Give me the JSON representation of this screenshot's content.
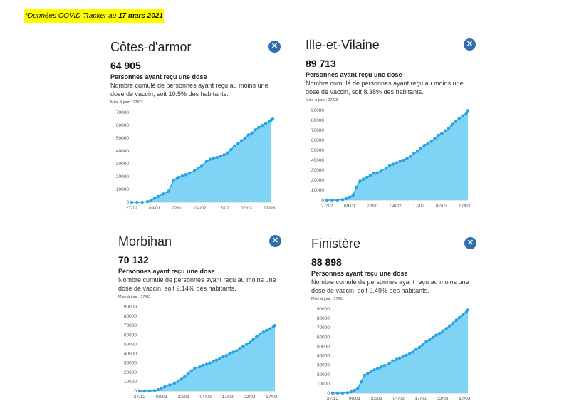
{
  "banner": {
    "prefix": "*Données COVID Tracker au ",
    "date": "17 mars 2021"
  },
  "cards": [
    {
      "title": "Côtes-d'armor",
      "value": "64 905",
      "subtitle": "Personnes ayant reçu une dose",
      "description": "Nombre cumulé de personnes ayant reçu au moins une dose de vaccin, soit 10.5% des habitants.",
      "update": "Mise à jour : 17/03",
      "close_icon": "close-icon"
    },
    {
      "title": "Ille-et-Vilaine",
      "value": "89 713",
      "subtitle": "Personnes ayant reçu une dose",
      "description": "Nombre cumulé de personnes ayant reçu au moins une dose de vaccin, soit 8.38% des habitants.",
      "update": "Mise à jour : 17/03",
      "close_icon": "close-icon"
    },
    {
      "title": "Morbihan",
      "value": "70 132",
      "subtitle": "Personnes ayant reçu une dose",
      "description": "Nombre cumulé de personnes ayant reçu au moins une dose de vaccin, soit 9.14% des habitants.",
      "update": "Mise à jour : 17/03",
      "close_icon": "close-icon"
    },
    {
      "title": "Finistère",
      "value": "88 898",
      "subtitle": "Personnes ayant reçu une dose",
      "description": "Nombre cumulé de personnes ayant reçu au moins une dose de vaccin, soit 9.49% des habitants.",
      "update": "Mise à jour : 17/03",
      "close_icon": "close-icon"
    }
  ],
  "colors": {
    "accent": "#2f6fae",
    "fill": "#7fd3f5",
    "line": "#29a3e3",
    "banner": "#ffff00"
  },
  "chart_data": [
    {
      "type": "area",
      "xlabels": [
        "27/12",
        "09/01",
        "22/01",
        "04/02",
        "17/02",
        "02/03",
        "17/03"
      ],
      "ylim": [
        0,
        70000
      ],
      "yticks": [
        0,
        10000,
        20000,
        30000,
        40000,
        50000,
        60000,
        70000
      ],
      "x": [
        0,
        3,
        6,
        9,
        11,
        13,
        15,
        18,
        21,
        24,
        26,
        27,
        29,
        31,
        33,
        36,
        38,
        40,
        43,
        45,
        47,
        49,
        51,
        53,
        55,
        57,
        59,
        61,
        63,
        65,
        67,
        69,
        71,
        73,
        75,
        77,
        79,
        81,
        80
      ],
      "values": [
        0,
        0,
        0,
        500,
        1500,
        3000,
        4500,
        6500,
        8500,
        17000,
        18500,
        19500,
        20500,
        21500,
        22500,
        24500,
        26500,
        28000,
        32000,
        33500,
        34500,
        35000,
        36000,
        37000,
        38500,
        41000,
        44000,
        45500,
        48000,
        50000,
        52500,
        54000,
        56500,
        58500,
        60000,
        61500,
        63000,
        64905,
        64000
      ],
      "title": "",
      "xlabel": "",
      "ylabel": ""
    },
    {
      "type": "area",
      "xlabels": [
        "27/12",
        "09/01",
        "22/01",
        "04/02",
        "17/02",
        "02/03",
        "17/03"
      ],
      "ylim": [
        0,
        90000
      ],
      "yticks": [
        0,
        10000,
        20000,
        30000,
        40000,
        50000,
        60000,
        70000,
        80000,
        90000
      ],
      "x": [
        0,
        3,
        6,
        9,
        11,
        13,
        15,
        17,
        19,
        21,
        23,
        25,
        27,
        29,
        31,
        34,
        36,
        38,
        40,
        42,
        44,
        46,
        48,
        50,
        52,
        54,
        56,
        58,
        60,
        62,
        64,
        66,
        68,
        70,
        72,
        74,
        76,
        78,
        80,
        81
      ],
      "values": [
        0,
        0,
        0,
        500,
        1500,
        3000,
        5000,
        13000,
        19000,
        21000,
        23000,
        25000,
        27000,
        27500,
        29000,
        32000,
        34500,
        36000,
        37500,
        39000,
        40000,
        42000,
        44000,
        47000,
        49000,
        52000,
        55000,
        57000,
        59000,
        62000,
        65000,
        67000,
        69500,
        72000,
        76000,
        79000,
        82000,
        84500,
        87000,
        89713
      ],
      "title": "",
      "xlabel": "",
      "ylabel": ""
    },
    {
      "type": "area",
      "xlabels": [
        "27/12",
        "09/01",
        "22/01",
        "04/02",
        "17/02",
        "02/03",
        "17/03"
      ],
      "ylim": [
        0,
        90000
      ],
      "yticks": [
        0,
        10000,
        20000,
        30000,
        40000,
        50000,
        60000,
        70000,
        80000,
        90000
      ],
      "x": [
        0,
        3,
        6,
        9,
        11,
        13,
        15,
        18,
        21,
        23,
        25,
        27,
        29,
        31,
        33,
        36,
        38,
        40,
        42,
        44,
        46,
        48,
        50,
        52,
        54,
        56,
        58,
        60,
        62,
        64,
        66,
        68,
        70,
        72,
        74,
        76,
        78,
        80,
        81
      ],
      "values": [
        0,
        0,
        0,
        500,
        1500,
        3000,
        4500,
        6500,
        8500,
        10500,
        12500,
        15500,
        19000,
        21500,
        24500,
        26000,
        27500,
        28500,
        30000,
        31500,
        33000,
        35000,
        36500,
        38000,
        40000,
        41500,
        43000,
        45500,
        48000,
        50000,
        52000,
        55000,
        58000,
        61000,
        63000,
        65000,
        66500,
        68500,
        70132
      ],
      "title": "",
      "xlabel": "",
      "ylabel": ""
    },
    {
      "type": "area",
      "xlabels": [
        "27/12",
        "09/01",
        "22/01",
        "04/02",
        "17/02",
        "02/03",
        "17/03"
      ],
      "ylim": [
        0,
        90000
      ],
      "yticks": [
        0,
        10000,
        20000,
        30000,
        40000,
        50000,
        60000,
        70000,
        80000,
        90000
      ],
      "x": [
        0,
        3,
        6,
        9,
        11,
        13,
        15,
        17,
        19,
        21,
        23,
        25,
        27,
        29,
        31,
        34,
        36,
        38,
        40,
        42,
        44,
        46,
        48,
        50,
        52,
        54,
        56,
        58,
        60,
        62,
        64,
        66,
        68,
        70,
        72,
        74,
        76,
        78,
        80,
        81
      ],
      "values": [
        0,
        0,
        0,
        500,
        1500,
        3000,
        5000,
        12000,
        19000,
        21000,
        23000,
        25000,
        26500,
        28000,
        29500,
        32000,
        34500,
        36000,
        37500,
        39000,
        40500,
        42000,
        44000,
        47000,
        49000,
        52000,
        55000,
        57000,
        59500,
        62000,
        64000,
        66500,
        69000,
        72000,
        75000,
        78000,
        81000,
        84000,
        86500,
        88898
      ],
      "title": "",
      "xlabel": "",
      "ylabel": ""
    }
  ]
}
